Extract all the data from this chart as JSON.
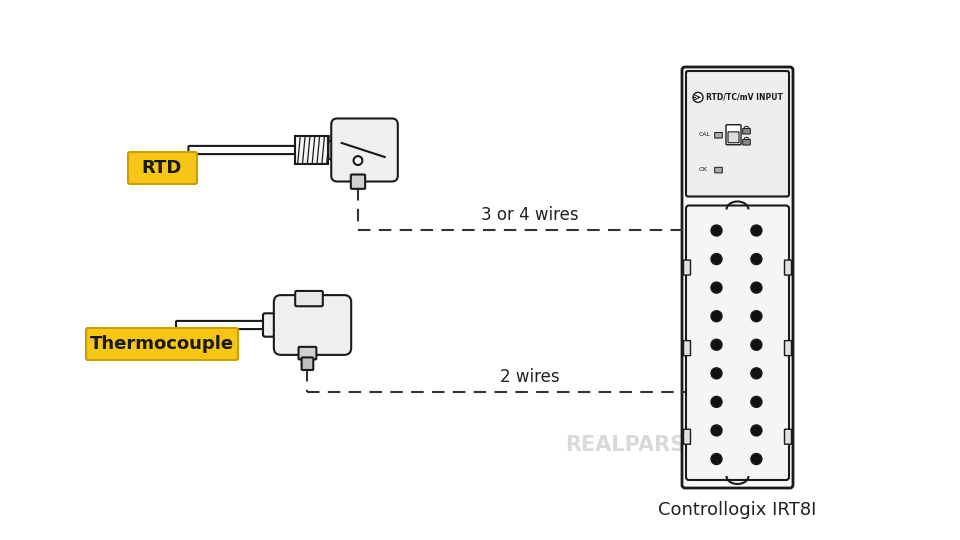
{
  "bg_color": "#ffffff",
  "line_color": "#1a1a1a",
  "label_bg": "#f5c518",
  "label_border": "#c8a000",
  "label_text": "#1a1a1a",
  "dashed_color": "#333333",
  "title": "Controllogix IRT8I",
  "rtd_label": "RTD",
  "tc_label": "Thermocouple",
  "wire_label_rtd": "3 or 4 wires",
  "wire_label_tc": "2 wires",
  "module_header": "RTD/TC/mV INPUT",
  "cal_label": "CAL",
  "ok_label": "OK",
  "watermark": "REALPARS",
  "dot_color": "#111111",
  "thread_color": "#f5f5f5",
  "head_color": "#f0f0f0",
  "exit_color": "#d0d0d0",
  "exit2_color": "#c0c0c0"
}
